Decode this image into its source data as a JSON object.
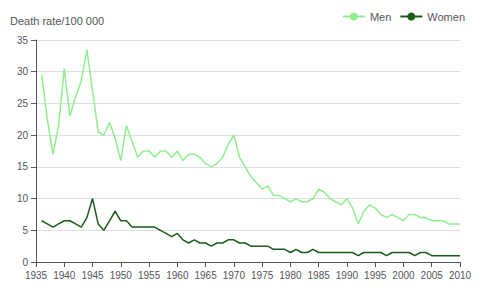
{
  "chart_data": {
    "type": "line",
    "ylabel": "Death rate/100 000",
    "x": [
      1936,
      1937,
      1938,
      1939,
      1940,
      1941,
      1942,
      1943,
      1944,
      1945,
      1946,
      1947,
      1948,
      1949,
      1950,
      1951,
      1952,
      1953,
      1954,
      1955,
      1956,
      1957,
      1958,
      1959,
      1960,
      1961,
      1962,
      1963,
      1964,
      1965,
      1966,
      1967,
      1968,
      1969,
      1970,
      1971,
      1972,
      1973,
      1974,
      1975,
      1976,
      1977,
      1978,
      1979,
      1980,
      1981,
      1982,
      1983,
      1984,
      1985,
      1986,
      1987,
      1988,
      1989,
      1990,
      1991,
      1992,
      1993,
      1994,
      1995,
      1996,
      1997,
      1998,
      1999,
      2000,
      2001,
      2002,
      2003,
      2004,
      2005,
      2006,
      2007,
      2008,
      2009,
      2010
    ],
    "series": [
      {
        "name": "Men",
        "color": "#90EE90",
        "values": [
          29.5,
          22.5,
          17.0,
          21.5,
          30.5,
          23.0,
          26.0,
          28.5,
          33.5,
          27.0,
          20.5,
          20.0,
          22.0,
          19.5,
          16.0,
          21.5,
          19.0,
          16.5,
          17.5,
          17.5,
          16.5,
          17.5,
          17.5,
          16.5,
          17.5,
          16.0,
          17.0,
          17.0,
          16.5,
          15.5,
          15.0,
          15.5,
          16.5,
          18.5,
          20.0,
          16.5,
          15.0,
          13.5,
          12.5,
          11.5,
          12.0,
          10.5,
          10.5,
          10.0,
          9.5,
          10.0,
          9.5,
          9.5,
          10.0,
          11.5,
          11.0,
          10.0,
          9.5,
          9.0,
          10.0,
          8.5,
          6.0,
          8.0,
          9.0,
          8.5,
          7.5,
          7.0,
          7.5,
          7.0,
          6.5,
          7.5,
          7.5,
          7.0,
          7.0,
          6.5,
          6.5,
          6.5,
          6.0,
          6.0,
          6.0
        ]
      },
      {
        "name": "Women",
        "color": "#1a5c1a",
        "values": [
          6.5,
          6.0,
          5.5,
          6.0,
          6.5,
          6.5,
          6.0,
          5.5,
          7.0,
          10.0,
          6.0,
          5.0,
          6.5,
          8.0,
          6.5,
          6.5,
          5.5,
          5.5,
          5.5,
          5.5,
          5.5,
          5.0,
          4.5,
          4.0,
          4.5,
          3.5,
          3.0,
          3.5,
          3.0,
          3.0,
          2.5,
          3.0,
          3.0,
          3.5,
          3.5,
          3.0,
          3.0,
          2.5,
          2.5,
          2.5,
          2.5,
          2.0,
          2.0,
          2.0,
          1.5,
          2.0,
          1.5,
          1.5,
          2.0,
          1.5,
          1.5,
          1.5,
          1.5,
          1.5,
          1.5,
          1.5,
          1.0,
          1.5,
          1.5,
          1.5,
          1.5,
          1.0,
          1.5,
          1.5,
          1.5,
          1.5,
          1.0,
          1.5,
          1.5,
          1.0,
          1.0,
          1.0,
          1.0,
          1.0,
          1.0
        ]
      }
    ],
    "xlim": [
      1935,
      2010
    ],
    "xticks": [
      1935,
      1940,
      1945,
      1950,
      1955,
      1960,
      1965,
      1970,
      1975,
      1980,
      1985,
      1990,
      1995,
      2000,
      2005,
      2010
    ],
    "ylim": [
      0,
      35
    ],
    "yticks": [
      0,
      5,
      10,
      15,
      20,
      25,
      30,
      35
    ],
    "grid": true,
    "legend": "upper right"
  }
}
